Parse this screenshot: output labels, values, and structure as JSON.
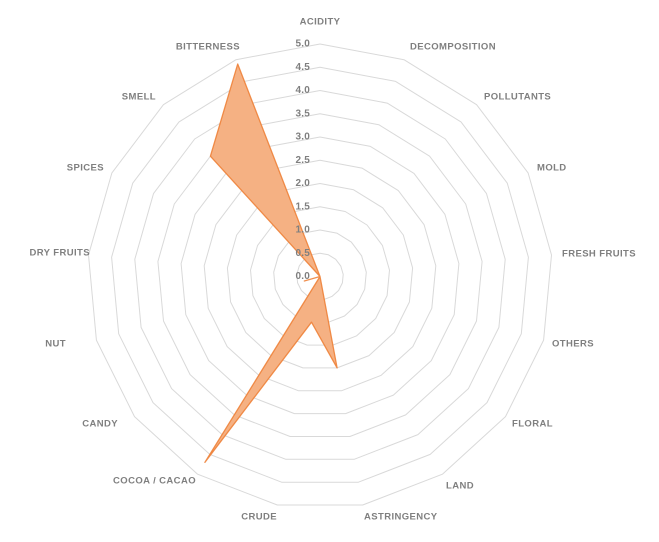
{
  "chart_data": {
    "type": "radar",
    "title": "",
    "legend": false,
    "grid": true,
    "categories": [
      "ACIDITY",
      "DECOMPOSITION",
      "POLLUTANTS",
      "MOLD",
      "FRESH FRUITS",
      "OTHERS",
      "FLORAL",
      "LAND",
      "ASTRINGENCY",
      "CRUDE",
      "COCOA / CACAO",
      "CANDY",
      "NUT",
      "DRY FRUITS",
      "SPICES",
      "SMELL",
      "BITTERNESS"
    ],
    "values": [
      0,
      0,
      0,
      0,
      0,
      0,
      0,
      0,
      2.0,
      1.0,
      4.7,
      0,
      0.35,
      0,
      0,
      3.5,
      4.9
    ],
    "axis": {
      "min": 0,
      "max": 5,
      "step": 0.5,
      "tick_labels": [
        "5.0",
        "4.5",
        "4.0",
        "3.5",
        "3.0",
        "2.5",
        "2.0",
        "1.5",
        "1.0",
        "0.5",
        "0.0"
      ]
    },
    "colors": {
      "fill": "#F5B183",
      "stroke": "#ED7D31",
      "grid": "#D9D9D9",
      "label": "#7F7F7F"
    }
  }
}
